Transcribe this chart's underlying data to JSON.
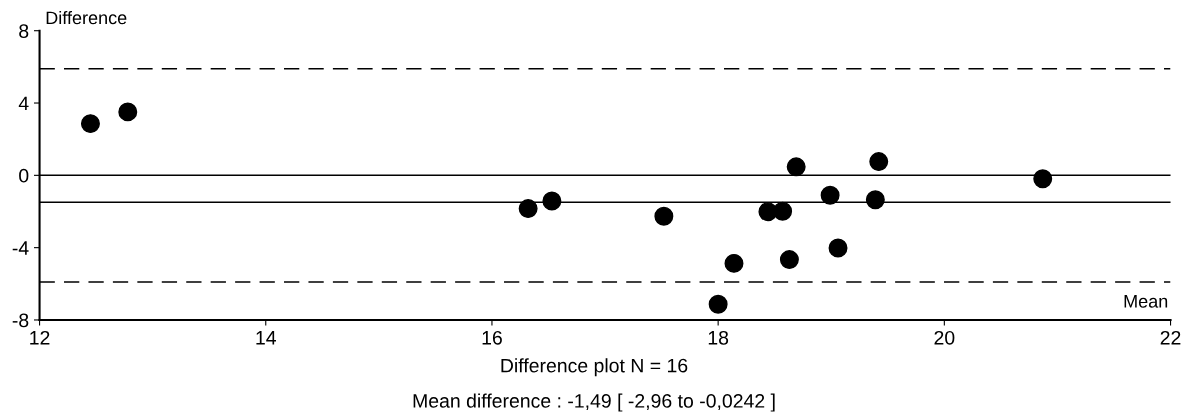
{
  "chart_data": {
    "type": "scatter",
    "ylabel": "Difference",
    "xlabel": "Mean",
    "x": [
      12.45,
      12.78,
      16.32,
      16.53,
      17.52,
      18.44,
      18.57,
      18.69,
      19.42,
      20.87,
      18.99,
      19.39,
      19.06,
      18.63,
      18.14,
      18.0
    ],
    "series": [
      {
        "color": "#000000",
        "values": [
          2.86,
          3.51,
          -1.84,
          -1.42,
          -2.26,
          -2.01,
          -1.99,
          0.47,
          0.76,
          -0.19,
          -1.1,
          -1.35,
          -4.02,
          -4.66,
          -4.87,
          -7.13
        ]
      }
    ],
    "marker": "circle",
    "grid": false,
    "legend": false,
    "xlim": [
      12,
      22
    ],
    "xticks": [
      12,
      14,
      16,
      18,
      20,
      22
    ],
    "ylim": [
      -8,
      8
    ],
    "yticks": [
      -8,
      -4,
      0,
      4,
      8
    ],
    "ref_lines": [
      {
        "axis": "y",
        "value": 0,
        "color": "#000000",
        "line_style": "solid"
      },
      {
        "axis": "y",
        "value": -1.49,
        "color": "#000000",
        "line_style": "solid"
      },
      {
        "axis": "y",
        "value": 5.9,
        "color": "#000000",
        "line_style": "dashed"
      },
      {
        "axis": "y",
        "value": -5.9,
        "color": "#000000",
        "line_style": "dashed"
      }
    ],
    "annotations": [
      "Difference plot N = 16",
      "Mean difference : -1,49 [ -2,96 to -0,0242 ]"
    ]
  }
}
